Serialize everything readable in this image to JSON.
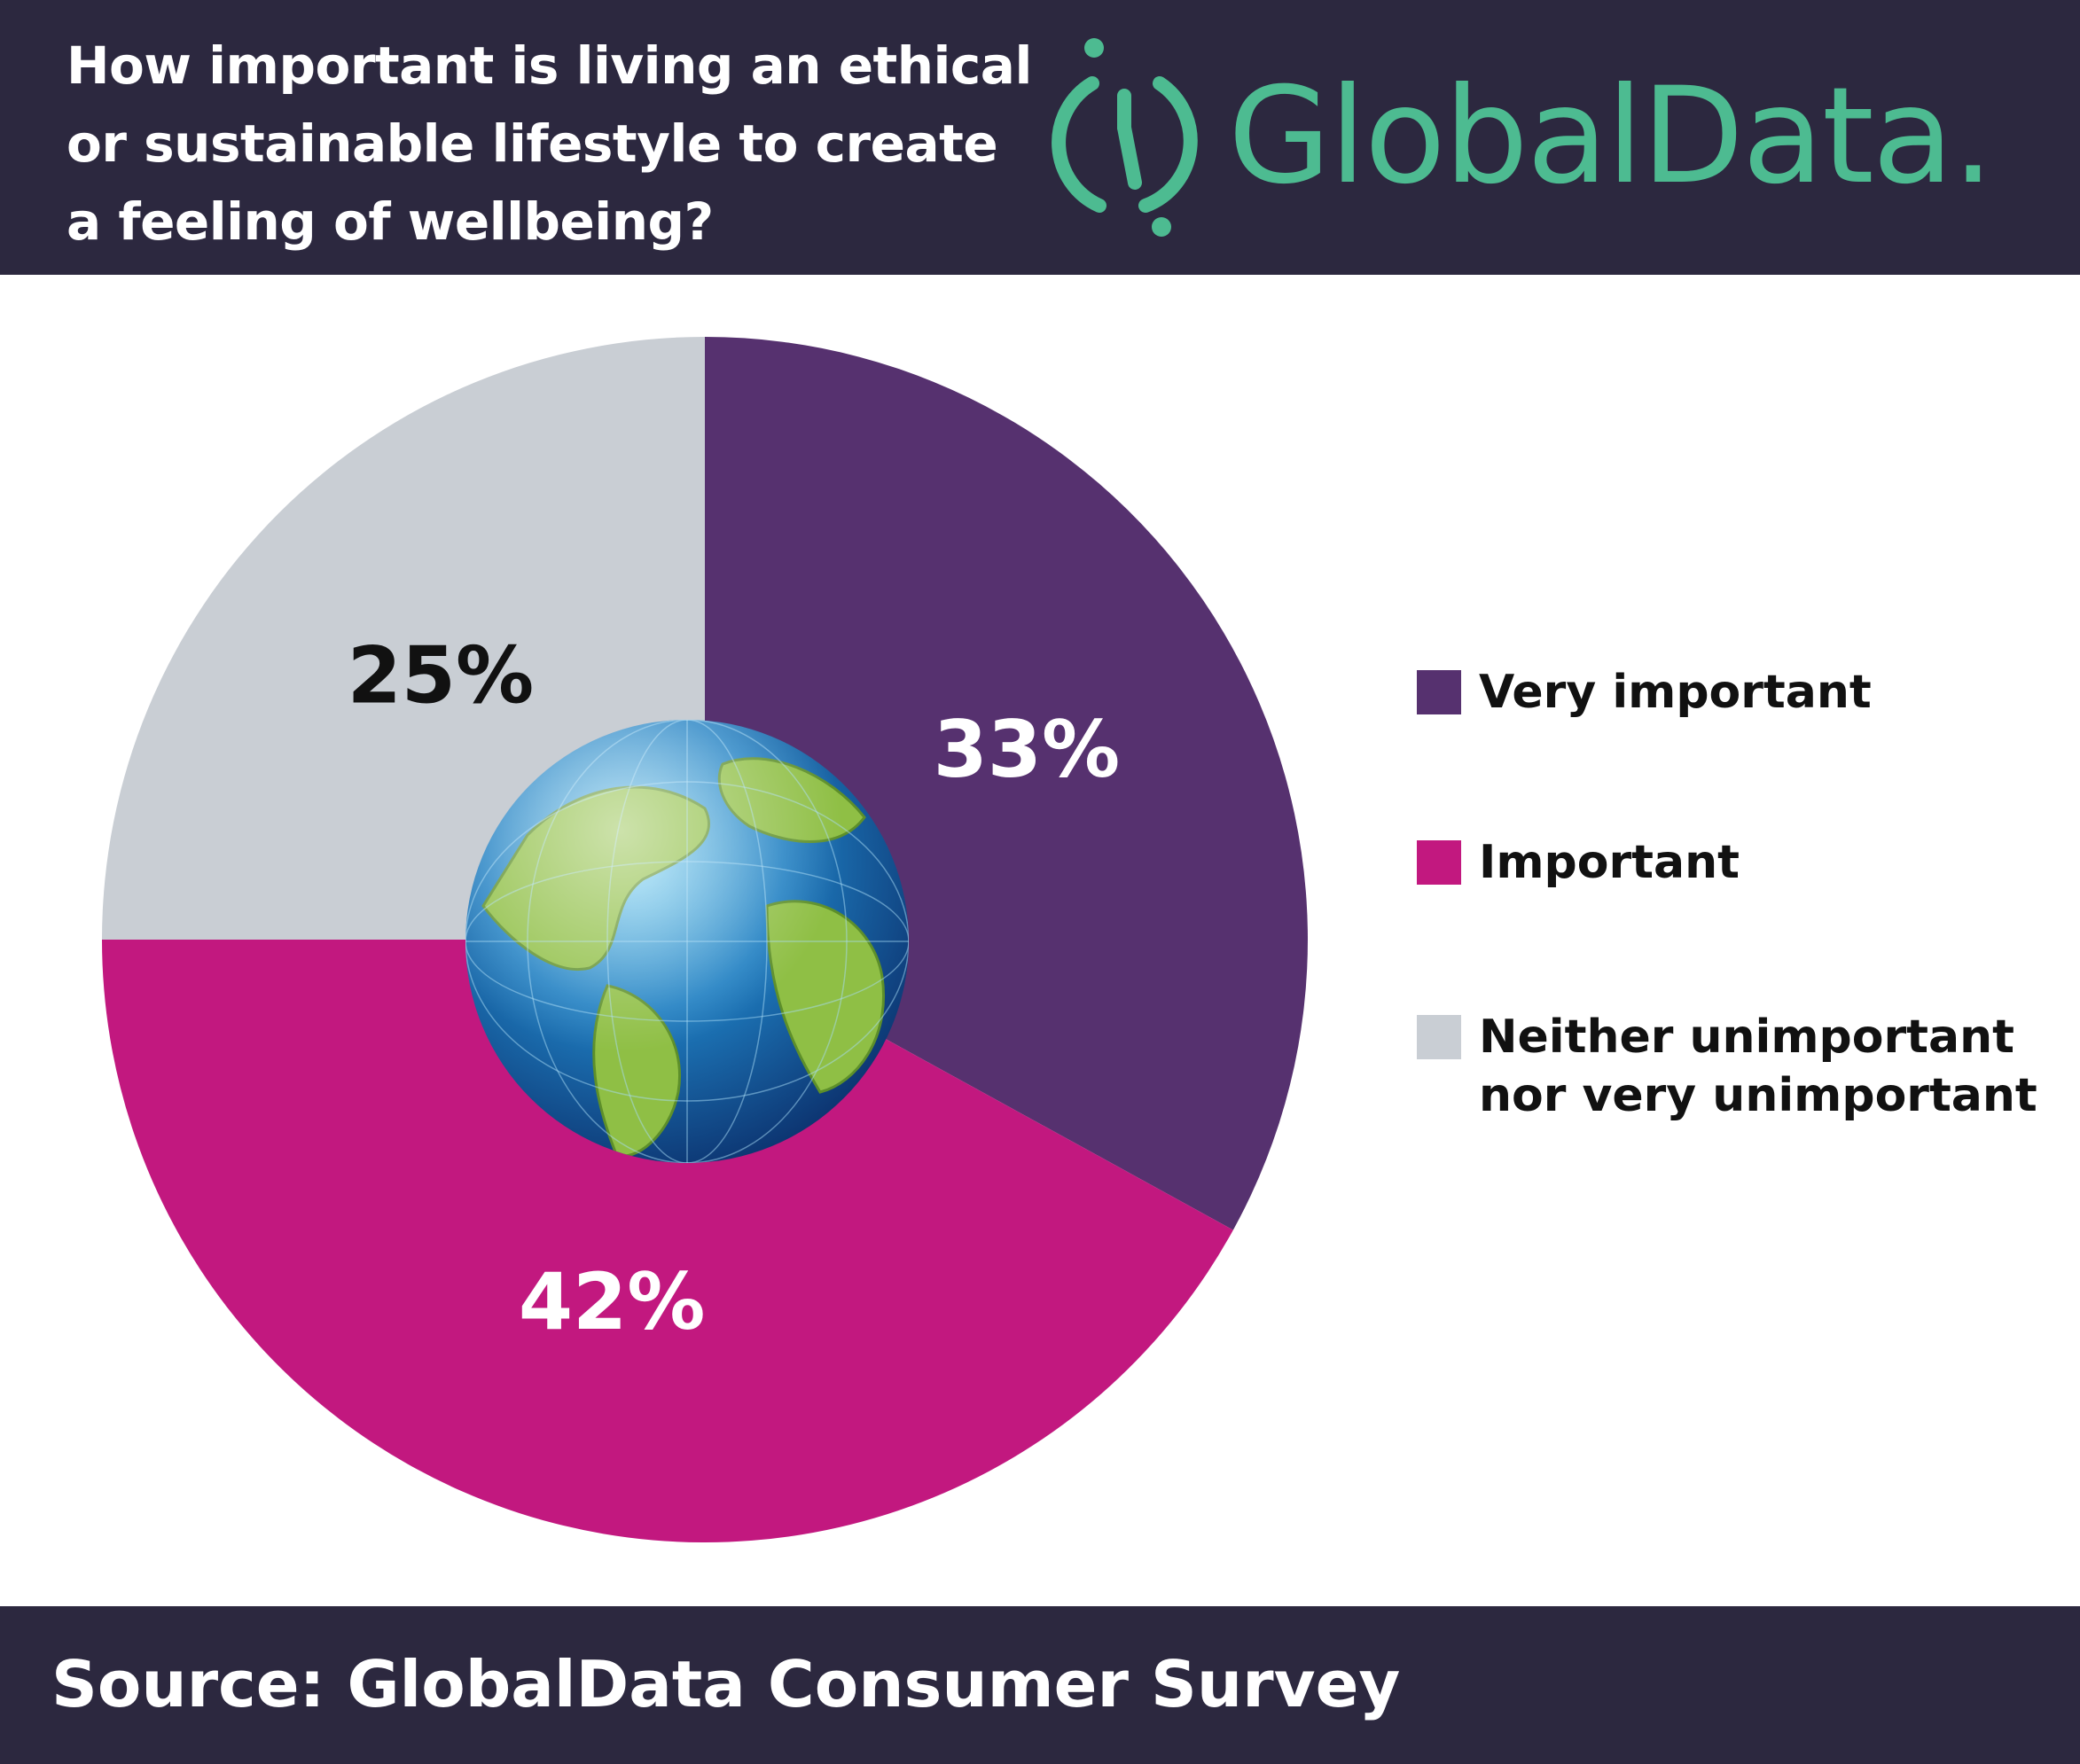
{
  "header": {
    "title": "How important is living an ethical or sustainable lifestyle to create a feeling of wellbeing?",
    "logo_text": "GlobalData.",
    "logo_icon": "globaldata-logo-icon",
    "logo_color": "#4dbb91",
    "background": "#2c283f"
  },
  "chart_data": {
    "type": "pie",
    "title": "How important is living an ethical or sustainable lifestyle to create a feeling of wellbeing?",
    "slices": [
      {
        "label": "Very important",
        "value": 33,
        "display": "33%",
        "color": "#56316f",
        "label_color": "#ffffff"
      },
      {
        "label": "Important",
        "value": 42,
        "display": "42%",
        "color": "#c2187f",
        "label_color": "#ffffff"
      },
      {
        "label": "Neither unimportant nor very unimportant",
        "value": 25,
        "display": "25%",
        "color": "#c9ced4",
        "label_color": "#111111"
      }
    ],
    "start": "12 o'clock",
    "direction": "clockwise",
    "legend_position": "right",
    "center_image": "globe-icon"
  },
  "legend": [
    {
      "label": "Very important",
      "color": "#56316f"
    },
    {
      "label": "Important",
      "color": "#c2187f"
    },
    {
      "label": "Neither unimportant nor very unimportant",
      "color": "#c9ced4"
    }
  ],
  "footer": {
    "source": "Source: GlobalData Consumer Survey",
    "background": "#2c283f"
  }
}
